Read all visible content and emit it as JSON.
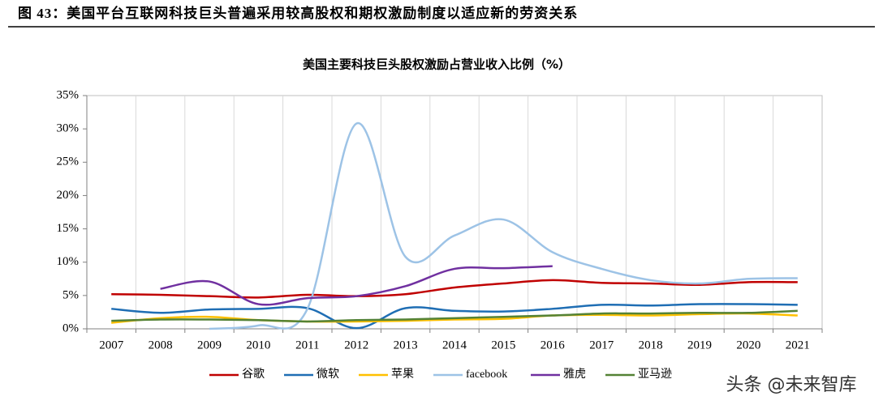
{
  "header": "图 43：美国平台互联网科技巨头普遍采用较高股权和期权激励制度以适应新的劳资关系",
  "watermark": "头条 @未来智库",
  "chart_data": {
    "type": "line",
    "title": "美国主要科技巨头股权激励占营业收入比例（%）",
    "categories": [
      "2007",
      "2008",
      "2009",
      "2010",
      "2011",
      "2012",
      "2013",
      "2014",
      "2015",
      "2016",
      "2017",
      "2018",
      "2019",
      "2020",
      "2021"
    ],
    "ylim": [
      0,
      35
    ],
    "yticks": [
      {
        "value": 0,
        "label": "0%"
      },
      {
        "value": 5,
        "label": "5%"
      },
      {
        "value": 10,
        "label": "10%"
      },
      {
        "value": 15,
        "label": "15%"
      },
      {
        "value": 20,
        "label": "20%"
      },
      {
        "value": 25,
        "label": "25%"
      },
      {
        "value": 30,
        "label": "30%"
      },
      {
        "value": 35,
        "label": "35%"
      }
    ],
    "series": [
      {
        "name": "谷歌",
        "color": "#c00000",
        "values": [
          5.2,
          5.1,
          4.9,
          4.7,
          5.1,
          4.9,
          5.2,
          6.2,
          6.8,
          7.3,
          6.9,
          6.8,
          6.6,
          7.0,
          7.0
        ]
      },
      {
        "name": "微软",
        "color": "#1f6eb4",
        "values": [
          3.0,
          2.4,
          2.9,
          3.0,
          3.1,
          0.1,
          3.1,
          2.7,
          2.6,
          3.0,
          3.6,
          3.5,
          3.7,
          3.7,
          3.6
        ]
      },
      {
        "name": "苹果",
        "color": "#ffc000",
        "values": [
          0.9,
          1.6,
          1.8,
          1.3,
          1.1,
          1.1,
          1.2,
          1.4,
          1.5,
          2.0,
          2.1,
          2.0,
          2.2,
          2.3,
          2.0
        ]
      },
      {
        "name": "facebook",
        "color": "#9dc3e6",
        "values": [
          null,
          null,
          0.0,
          0.5,
          3.0,
          30.8,
          10.8,
          14.0,
          16.4,
          11.5,
          9.0,
          7.3,
          6.8,
          7.5,
          7.6
        ]
      },
      {
        "name": "雅虎",
        "color": "#7030a0",
        "values": [
          null,
          6.0,
          7.1,
          3.7,
          4.6,
          4.9,
          6.4,
          9.0,
          9.1,
          9.4,
          null,
          null,
          null,
          null,
          null
        ]
      },
      {
        "name": "亚马逊",
        "color": "#548235",
        "values": [
          1.2,
          1.4,
          1.4,
          1.3,
          1.1,
          1.3,
          1.4,
          1.6,
          1.8,
          2.0,
          2.3,
          2.3,
          2.4,
          2.4,
          2.7
        ]
      }
    ]
  }
}
